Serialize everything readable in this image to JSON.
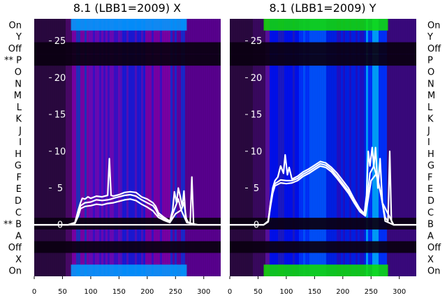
{
  "figure": {
    "row_labels": [
      "On",
      "Y",
      "Off",
      "** P",
      "O",
      "N",
      "M",
      "L",
      "K",
      "J",
      "I",
      "H",
      "G",
      "F",
      "E",
      "D",
      "C",
      "** B",
      "A",
      "Off",
      "X",
      "On"
    ]
  },
  "chart_data": [
    {
      "type": "heatmap",
      "title": "8.1 (LBB1=2009) X",
      "xlabel": "",
      "ylabel": "",
      "xlim": [
        0,
        330
      ],
      "x_ticks": [
        0,
        50,
        100,
        150,
        200,
        250,
        300
      ],
      "ylim": [
        -7,
        28
      ],
      "y_ticks": [
        0,
        5,
        10,
        15,
        20,
        25
      ],
      "grid": false,
      "colormap": [
        "#0a0010",
        "#2a0840",
        "#7a00a8",
        "#0000ff",
        "#0090ff",
        "#00ff00"
      ],
      "colors": {
        "trace": "#ffffff",
        "tick_label": "#ffffff"
      },
      "series": [
        {
          "x": [
            0,
            60,
            72,
            78,
            82,
            85,
            90,
            95,
            100,
            110,
            120,
            130,
            133,
            136,
            140,
            150,
            160,
            170,
            180,
            190,
            200,
            210,
            215,
            220,
            230,
            240,
            245,
            248,
            252,
            255,
            258,
            262,
            265,
            268,
            272,
            276,
            279,
            282,
            285,
            290,
            300,
            310,
            330
          ],
          "y": [
            0,
            0,
            0.3,
            2,
            3,
            3.6,
            3.5,
            3.8,
            3.6,
            3.9,
            3.8,
            4,
            9,
            4,
            3.9,
            4.1,
            4.4,
            4.5,
            4.4,
            3.8,
            3.5,
            3,
            2.5,
            1.6,
            1,
            0.5,
            2,
            4.5,
            3,
            5,
            4,
            2.5,
            4.6,
            1,
            0.4,
            0.2,
            6.5,
            0,
            0,
            0,
            0,
            0,
            0
          ]
        },
        {
          "x": [
            0,
            60,
            72,
            78,
            82,
            90,
            100,
            110,
            120,
            130,
            136,
            140,
            150,
            160,
            170,
            180,
            190,
            200,
            210,
            215,
            220,
            230,
            240,
            245,
            250,
            255,
            260,
            265,
            270,
            280,
            290,
            330
          ],
          "y": [
            0,
            0,
            0.3,
            1.6,
            2.6,
            3,
            3.1,
            3.4,
            3.3,
            3.4,
            3.5,
            3.6,
            3.8,
            4,
            4.1,
            3.9,
            3.4,
            3,
            2.6,
            2.1,
            1.3,
            0.8,
            0.4,
            1.5,
            2.5,
            3.5,
            2,
            3,
            0.4,
            0.1,
            0,
            0
          ]
        },
        {
          "x": [
            0,
            60,
            72,
            78,
            82,
            90,
            100,
            110,
            120,
            130,
            140,
            150,
            160,
            170,
            180,
            190,
            200,
            210,
            220,
            230,
            240,
            250,
            260,
            270,
            290,
            330
          ],
          "y": [
            0,
            0,
            0.2,
            1.2,
            2.2,
            2.5,
            2.6,
            2.8,
            2.7,
            2.9,
            3,
            3.2,
            3.4,
            3.5,
            3.3,
            2.8,
            2.4,
            1.9,
            1,
            0.6,
            0.3,
            1.5,
            2,
            0.3,
            0,
            0
          ]
        },
        {
          "x": [
            0,
            100,
            200,
            300,
            330
          ],
          "y": [
            0,
            0,
            0,
            0,
            0
          ]
        }
      ]
    },
    {
      "type": "heatmap",
      "title": "8.1 (LBB1=2009) Y",
      "xlabel": "",
      "ylabel": "",
      "xlim": [
        0,
        330
      ],
      "x_ticks": [
        0,
        50,
        100,
        150,
        200,
        250,
        300
      ],
      "ylim": [
        -7,
        28
      ],
      "y_ticks": [
        0,
        5,
        10,
        15,
        20,
        25
      ],
      "grid": false,
      "colormap": [
        "#0a0010",
        "#2a0840",
        "#7a00a8",
        "#0000ff",
        "#0090ff",
        "#00ff00"
      ],
      "colors": {
        "trace": "#ffffff",
        "tick_label": "#ffffff"
      },
      "series": [
        {
          "x": [
            0,
            60,
            68,
            72,
            76,
            80,
            85,
            90,
            95,
            98,
            102,
            105,
            110,
            120,
            130,
            140,
            150,
            160,
            170,
            180,
            190,
            200,
            210,
            220,
            230,
            238,
            242,
            245,
            248,
            252,
            255,
            258,
            262,
            266,
            270,
            275,
            280,
            283,
            286,
            290,
            300,
            310,
            330
          ],
          "y": [
            0,
            0,
            0.5,
            3,
            5,
            6,
            6.5,
            8,
            7,
            9.5,
            6.8,
            7.8,
            6.2,
            6.6,
            7.2,
            7.6,
            8.1,
            8.6,
            8.4,
            7.8,
            7,
            6,
            5,
            3.5,
            2.2,
            1.5,
            4,
            10,
            8,
            10.5,
            8,
            10.5,
            5,
            9,
            3,
            1,
            0.5,
            10,
            0.5,
            0,
            0,
            0,
            0
          ]
        },
        {
          "x": [
            0,
            60,
            68,
            72,
            76,
            80,
            90,
            100,
            110,
            120,
            130,
            140,
            150,
            160,
            170,
            180,
            190,
            200,
            210,
            220,
            230,
            240,
            248,
            255,
            262,
            268,
            275,
            290,
            330
          ],
          "y": [
            0,
            0,
            0.5,
            2.8,
            4.6,
            5.6,
            6.1,
            6,
            6,
            6.3,
            6.9,
            7.3,
            7.8,
            8.3,
            8.1,
            7.5,
            6.6,
            5.6,
            4.6,
            3.2,
            2,
            1.4,
            7,
            8,
            6,
            4,
            0.5,
            0,
            0
          ]
        },
        {
          "x": [
            0,
            60,
            68,
            72,
            76,
            80,
            90,
            100,
            110,
            120,
            130,
            140,
            150,
            160,
            170,
            180,
            190,
            200,
            210,
            220,
            230,
            240,
            250,
            260,
            270,
            290,
            330
          ],
          "y": [
            0,
            0,
            0.4,
            2.5,
            4.3,
            5.3,
            5.7,
            5.6,
            5.7,
            6,
            6.6,
            7,
            7.5,
            8,
            7.8,
            7.2,
            6.3,
            5.3,
            4.3,
            3,
            1.8,
            1.2,
            6,
            7,
            3,
            0,
            0
          ]
        }
      ]
    }
  ]
}
